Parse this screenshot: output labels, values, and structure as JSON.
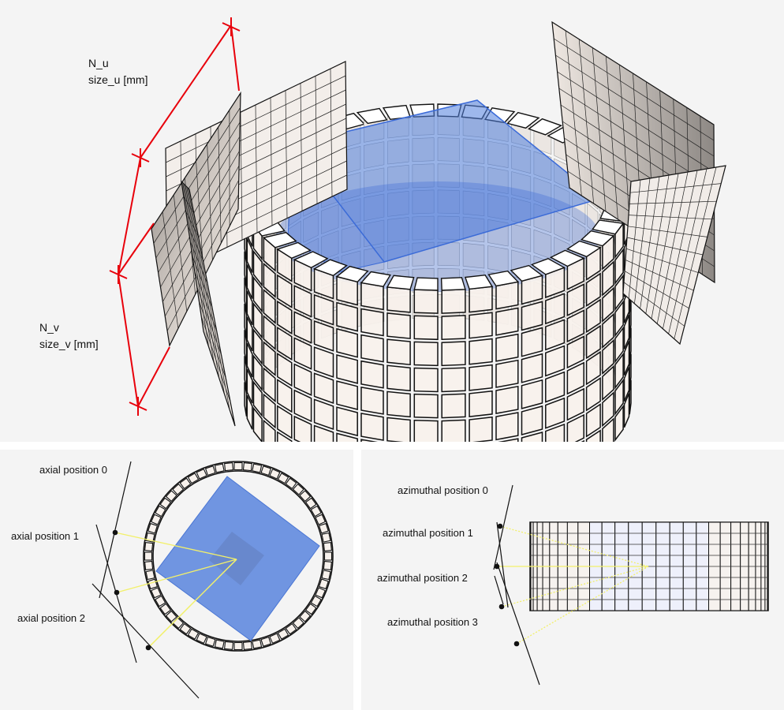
{
  "top": {
    "labels": {
      "n_u": "N_u",
      "size_u": "size_u [mm]",
      "n_v": "N_v",
      "size_v": "size_v [mm]"
    }
  },
  "axial": {
    "positions": [
      "axial position 0",
      "axial position 1",
      "axial position 2"
    ]
  },
  "azimuthal": {
    "positions": [
      "azimuthal position 0",
      "azimuthal position 1",
      "azimuthal position 2",
      "azimuthal position 3"
    ]
  },
  "colors": {
    "panel_bg": "#f4f4f4",
    "dimension_line": "#e8000b",
    "phantom_blue": "#4f7ddc",
    "ray_yellow": "#f2f06a",
    "detector_face": "#f7f1ec"
  }
}
